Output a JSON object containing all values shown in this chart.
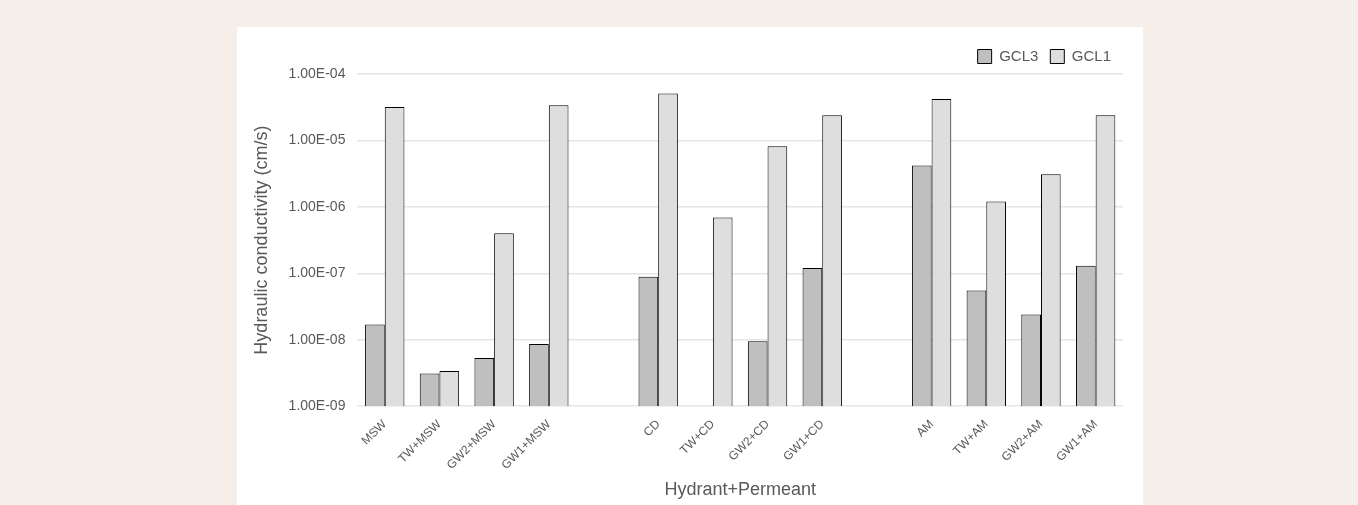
{
  "chart_data": {
    "type": "bar",
    "xlabel": "Hydrant+Permeant",
    "ylabel": "Hydraulic conductivity (cm/s)",
    "categories": [
      "MSW",
      "TW+MSW",
      "GW2+MSW",
      "GW1+MSW",
      null,
      "CD",
      "TW+CD",
      "GW2+CD",
      "GW1+CD",
      null,
      "AM",
      "TW+AM",
      "GW2+AM",
      "GW1+AM"
    ],
    "series": [
      {
        "name": "GCL3",
        "color": "#bfbfbf",
        "values": [
          1.7e-08,
          3.1e-09,
          5.3e-09,
          8.6e-09,
          null,
          8.9e-08,
          null,
          9.5e-09,
          1.2e-07,
          null,
          4.2e-06,
          5.5e-08,
          2.4e-08,
          1.3e-07
        ]
      },
      {
        "name": "GCL1",
        "color": "#dedede",
        "values": [
          3.2e-05,
          3.4e-09,
          4e-07,
          3.4e-05,
          null,
          5.1e-05,
          6.9e-07,
          8.2e-06,
          2.4e-05,
          null,
          4.2e-05,
          1.2e-06,
          3.1e-06,
          2.4e-05
        ]
      }
    ],
    "log": "y",
    "ylim": [
      1e-09,
      0.0001
    ],
    "yticks": [
      {
        "value": 1e-09,
        "label": "1.00E-09"
      },
      {
        "value": 1e-08,
        "label": "1.00E-08"
      },
      {
        "value": 1e-07,
        "label": "1.00E-07"
      },
      {
        "value": 1e-06,
        "label": "1.00E-06"
      },
      {
        "value": 1e-05,
        "label": "1.00E-05"
      },
      {
        "value": 0.0001,
        "label": "1.00E-04"
      }
    ],
    "grid": "y",
    "legend": "top right"
  }
}
